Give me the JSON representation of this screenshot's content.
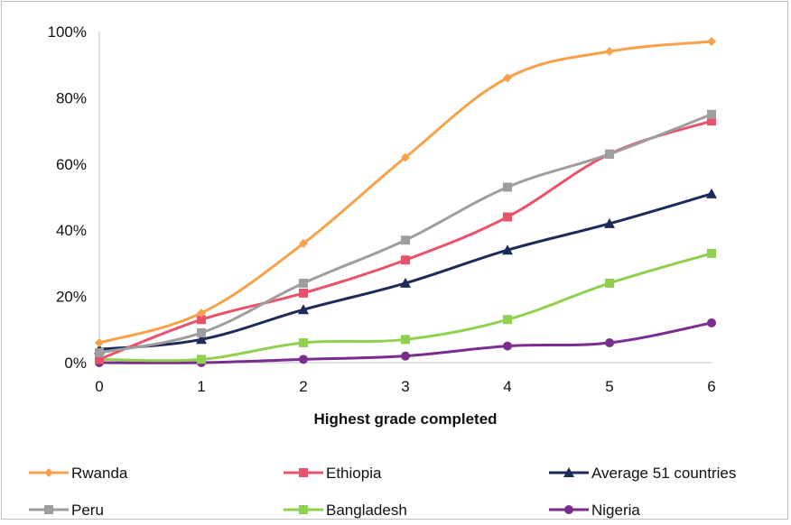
{
  "chart_data": {
    "type": "line",
    "title": "",
    "xlabel": "Highest grade completed",
    "ylabel": "",
    "x": [
      0,
      1,
      2,
      3,
      4,
      5,
      6
    ],
    "ylim": [
      0,
      100
    ],
    "yticks": [
      "0%",
      "20%",
      "40%",
      "60%",
      "80%",
      "100%"
    ],
    "xticks": [
      "0",
      "1",
      "2",
      "3",
      "4",
      "5",
      "6"
    ],
    "grid": false,
    "legend_position": "bottom",
    "series": [
      {
        "name": "Rwanda",
        "color": "#f7a14a",
        "marker": "diamond",
        "values": [
          6,
          15,
          36,
          62,
          86,
          94,
          97
        ]
      },
      {
        "name": "Ethiopia",
        "color": "#e8536b",
        "marker": "square",
        "values": [
          1,
          13,
          21,
          31,
          44,
          63,
          73
        ]
      },
      {
        "name": "Average 51 countries",
        "color": "#1d2b5c",
        "marker": "triangle",
        "values": [
          4,
          7,
          16,
          24,
          34,
          42,
          51
        ]
      },
      {
        "name": "Peru",
        "color": "#9e9e9e",
        "marker": "square",
        "values": [
          3,
          9,
          24,
          37,
          53,
          63,
          75
        ]
      },
      {
        "name": "Bangladesh",
        "color": "#8fd14f",
        "marker": "square",
        "values": [
          1,
          1,
          6,
          7,
          13,
          24,
          33
        ]
      },
      {
        "name": "Nigeria",
        "color": "#7b2d8e",
        "marker": "circle",
        "values": [
          0,
          0,
          1,
          2,
          5,
          6,
          12
        ]
      }
    ]
  }
}
